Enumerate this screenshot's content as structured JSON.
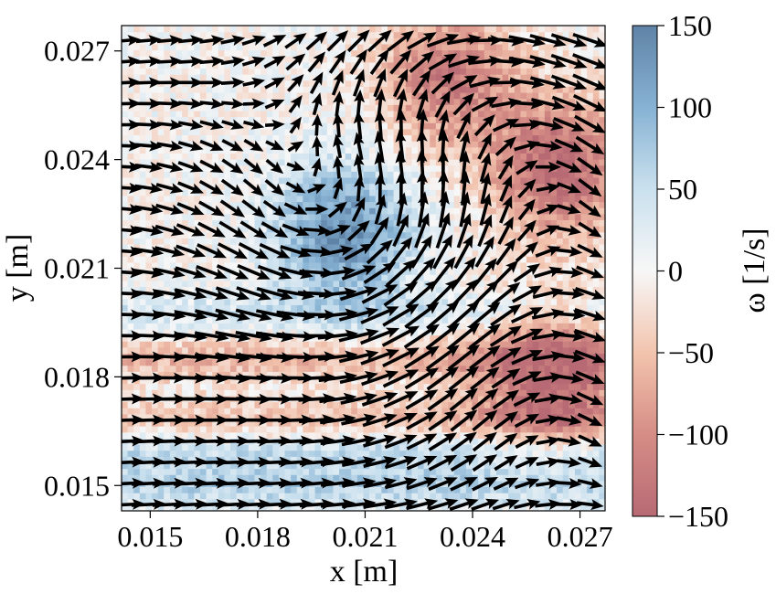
{
  "chart_data": {
    "type": "heatmap",
    "overlay": "quiver",
    "xlabel": "x [m]",
    "ylabel": "y [m]",
    "xlim": [
      0.0142,
      0.0277
    ],
    "ylim": [
      0.0143,
      0.0277
    ],
    "xticks": [
      0.015,
      0.018,
      0.021,
      0.024,
      0.027
    ],
    "xtick_labels": [
      "0.015",
      "0.018",
      "0.021",
      "0.024",
      "0.027"
    ],
    "yticks": [
      0.015,
      0.018,
      0.021,
      0.024,
      0.027
    ],
    "ytick_labels": [
      "0.015",
      "0.018",
      "0.021",
      "0.024",
      "0.027"
    ],
    "colorbar": {
      "label": "ω [1/s]",
      "vmin": -150,
      "vmax": 150,
      "ticks": [
        150,
        100,
        50,
        0,
        -50,
        -100,
        -150
      ],
      "tick_labels": [
        "150",
        "100",
        "50",
        "0",
        "−50",
        "−100",
        "−150"
      ],
      "colormap": "RdBu (diverging, semi-transparent)",
      "high_color": "#5f83a6",
      "mid_color": "#f7f7f7",
      "low_color": "#b86a74"
    },
    "vortices": [
      {
        "x": 0.0204,
        "y": 0.022,
        "omega": 140,
        "sense": "counter-clockwise"
      },
      {
        "x": 0.0233,
        "y": 0.0263,
        "omega": -120,
        "sense": "clockwise"
      },
      {
        "x": 0.0264,
        "y": 0.0238,
        "omega": -150,
        "sense": "clockwise"
      },
      {
        "x": 0.0262,
        "y": 0.018,
        "omega": -140,
        "sense": "clockwise"
      }
    ],
    "vorticity_bands": [
      {
        "y": 0.0185,
        "omega": -70
      },
      {
        "y": 0.0168,
        "omega": -60
      },
      {
        "y": 0.016,
        "omega": 60
      },
      {
        "y": 0.015,
        "omega": 70
      },
      {
        "y": 0.0198,
        "omega": 40
      }
    ],
    "vector_field": {
      "dominant_direction": "left-to-right shear flow with recirculation around the vortex cores",
      "arrow_color": "#000000"
    },
    "grid": false
  }
}
